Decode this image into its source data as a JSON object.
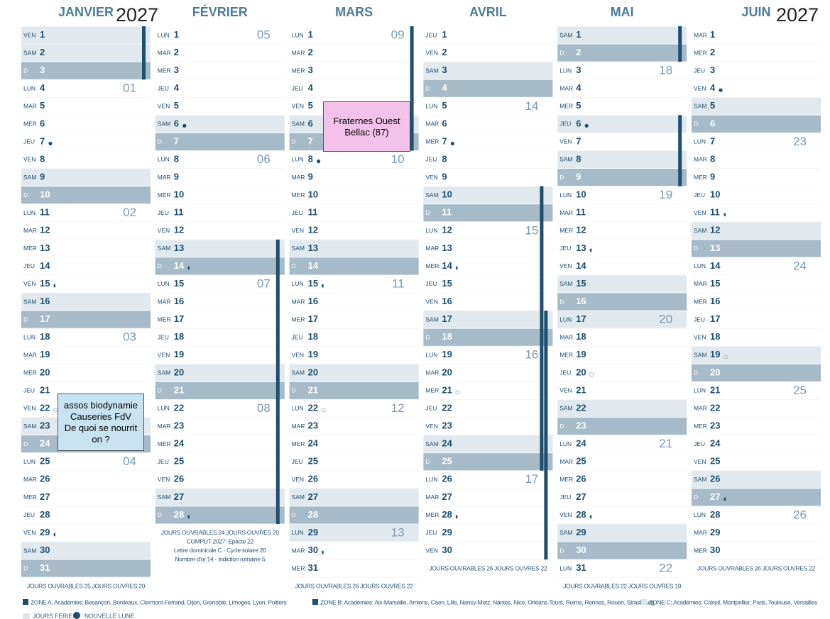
{
  "calendar": {
    "year_left": "2027",
    "year_right": "2027",
    "months": [
      {
        "name": "JANVIER",
        "days": [
          [
            "VEN",
            1
          ],
          [
            "SAM",
            2
          ],
          [
            "D",
            3
          ],
          [
            "LUN",
            4,
            "01"
          ],
          [
            "MAR",
            5
          ],
          [
            "MER",
            6
          ],
          [
            "JEU",
            7
          ],
          [
            "VEN",
            8
          ],
          [
            "SAM",
            9
          ],
          [
            "D",
            10
          ],
          [
            "LUN",
            11,
            "02"
          ],
          [
            "MAR",
            12
          ],
          [
            "MER",
            13
          ],
          [
            "JEU",
            14
          ],
          [
            "VEN",
            15
          ],
          [
            "SAM",
            16
          ],
          [
            "D",
            17
          ],
          [
            "LUN",
            18,
            "03"
          ],
          [
            "MAR",
            19
          ],
          [
            "MER",
            20
          ],
          [
            "JEU",
            21
          ],
          [
            "VEN",
            22
          ],
          [
            "SAM",
            23
          ],
          [
            "D",
            24
          ],
          [
            "LUN",
            25,
            "04"
          ],
          [
            "MAR",
            26
          ],
          [
            "MER",
            27
          ],
          [
            "JEU",
            28
          ],
          [
            "VEN",
            29
          ],
          [
            "SAM",
            30
          ],
          [
            "D",
            31
          ]
        ],
        "holidays": [
          1
        ],
        "moons": [
          [
            7,
            "new"
          ],
          [
            15,
            "quarter"
          ],
          [
            22,
            "full"
          ],
          [
            29,
            "quarter"
          ]
        ],
        "vacations": [
          [
            1,
            3,
            "A"
          ]
        ],
        "footer": [
          "JOURS OUVRABLES 25 JOURS OUVRES 20"
        ]
      },
      {
        "name": "FÉVRIER",
        "days": [
          [
            "LUN",
            1,
            "05"
          ],
          [
            "MAR",
            2
          ],
          [
            "MER",
            3
          ],
          [
            "JEU",
            4
          ],
          [
            "VEN",
            5
          ],
          [
            "SAM",
            6
          ],
          [
            "D",
            7
          ],
          [
            "LUN",
            8,
            "06"
          ],
          [
            "MAR",
            9
          ],
          [
            "MER",
            10
          ],
          [
            "JEU",
            11
          ],
          [
            "VEN",
            12
          ],
          [
            "SAM",
            13
          ],
          [
            "D",
            14
          ],
          [
            "LUN",
            15,
            "07"
          ],
          [
            "MAR",
            16
          ],
          [
            "MER",
            17
          ],
          [
            "JEU",
            18
          ],
          [
            "VEN",
            19
          ],
          [
            "SAM",
            20
          ],
          [
            "D",
            21
          ],
          [
            "LUN",
            22,
            "08"
          ],
          [
            "MAR",
            23
          ],
          [
            "MER",
            24
          ],
          [
            "JEU",
            25
          ],
          [
            "VEN",
            26
          ],
          [
            "SAM",
            27
          ],
          [
            "D",
            28
          ]
        ],
        "holidays": [],
        "moons": [
          [
            6,
            "new"
          ],
          [
            14,
            "quarter"
          ],
          [
            21,
            "full"
          ],
          [
            28,
            "quarter"
          ]
        ],
        "vacations": [
          [
            13,
            28,
            "A"
          ]
        ],
        "footer": [
          "JOURS OUVRABLES 24 JOURS OUVRES 20",
          "COMPUT 2027: Epacte 22",
          "Lettre dominicale C - Cycle solaire 20",
          "Nombre d'or 14 - Indiction romaine 5"
        ]
      },
      {
        "name": "MARS",
        "days": [
          [
            "LUN",
            1,
            "09"
          ],
          [
            "MAR",
            2
          ],
          [
            "MER",
            3
          ],
          [
            "JEU",
            4
          ],
          [
            "VEN",
            5
          ],
          [
            "SAM",
            6
          ],
          [
            "D",
            7
          ],
          [
            "LUN",
            8,
            "10"
          ],
          [
            "MAR",
            9
          ],
          [
            "MER",
            10
          ],
          [
            "JEU",
            11
          ],
          [
            "VEN",
            12
          ],
          [
            "SAM",
            13
          ],
          [
            "D",
            14
          ],
          [
            "LUN",
            15,
            "11"
          ],
          [
            "MAR",
            16
          ],
          [
            "MER",
            17
          ],
          [
            "JEU",
            18
          ],
          [
            "VEN",
            19
          ],
          [
            "SAM",
            20
          ],
          [
            "D",
            21
          ],
          [
            "LUN",
            22,
            "12"
          ],
          [
            "MAR",
            23
          ],
          [
            "MER",
            24
          ],
          [
            "JEU",
            25
          ],
          [
            "VEN",
            26
          ],
          [
            "SAM",
            27
          ],
          [
            "D",
            28
          ],
          [
            "LUN",
            29,
            "13"
          ],
          [
            "MAR",
            30
          ],
          [
            "MER",
            31
          ]
        ],
        "holidays": [
          29
        ],
        "moons": [
          [
            8,
            "new"
          ],
          [
            15,
            "quarter"
          ],
          [
            22,
            "full"
          ],
          [
            30,
            "quarter"
          ]
        ],
        "vacations": [
          [
            1,
            7,
            "A"
          ]
        ],
        "footer": [
          "JOURS OUVRABLES 26 JOURS OUVRES 22"
        ]
      },
      {
        "name": "AVRIL",
        "days": [
          [
            "JEU",
            1
          ],
          [
            "VEN",
            2
          ],
          [
            "SAM",
            3
          ],
          [
            "D",
            4
          ],
          [
            "LUN",
            5,
            "14"
          ],
          [
            "MAR",
            6
          ],
          [
            "MER",
            7
          ],
          [
            "JEU",
            8
          ],
          [
            "VEN",
            9
          ],
          [
            "SAM",
            10
          ],
          [
            "D",
            11
          ],
          [
            "LUN",
            12,
            "15"
          ],
          [
            "MAR",
            13
          ],
          [
            "MER",
            14
          ],
          [
            "JEU",
            15
          ],
          [
            "VEN",
            16
          ],
          [
            "SAM",
            17
          ],
          [
            "D",
            18
          ],
          [
            "LUN",
            19,
            "16"
          ],
          [
            "MAR",
            20
          ],
          [
            "MER",
            21
          ],
          [
            "JEU",
            22
          ],
          [
            "VEN",
            23
          ],
          [
            "SAM",
            24
          ],
          [
            "D",
            25
          ],
          [
            "LUN",
            26,
            "17"
          ],
          [
            "MAR",
            27
          ],
          [
            "MER",
            28
          ],
          [
            "JEU",
            29
          ],
          [
            "VEN",
            30
          ]
        ],
        "holidays": [],
        "moons": [
          [
            7,
            "new"
          ],
          [
            14,
            "quarter"
          ],
          [
            21,
            "full"
          ],
          [
            28,
            "quarter"
          ]
        ],
        "vacations": [
          [
            10,
            25,
            "B"
          ],
          [
            17,
            30,
            "C"
          ]
        ],
        "footer": [
          "JOURS OUVRABLES 26 JOURS OUVRES 22"
        ]
      },
      {
        "name": "MAI",
        "days": [
          [
            "SAM",
            1
          ],
          [
            "D",
            2
          ],
          [
            "LUN",
            3,
            "18"
          ],
          [
            "MAR",
            4
          ],
          [
            "MER",
            5
          ],
          [
            "JEU",
            6
          ],
          [
            "VEN",
            7
          ],
          [
            "SAM",
            8
          ],
          [
            "D",
            9
          ],
          [
            "LUN",
            10,
            "19"
          ],
          [
            "MAR",
            11
          ],
          [
            "MER",
            12
          ],
          [
            "JEU",
            13
          ],
          [
            "VEN",
            14
          ],
          [
            "SAM",
            15
          ],
          [
            "D",
            16
          ],
          [
            "LUN",
            17,
            "20"
          ],
          [
            "MAR",
            18
          ],
          [
            "MER",
            19
          ],
          [
            "JEU",
            20
          ],
          [
            "VEN",
            21
          ],
          [
            "SAM",
            22
          ],
          [
            "D",
            23
          ],
          [
            "LUN",
            24,
            "21"
          ],
          [
            "MAR",
            25
          ],
          [
            "MER",
            26
          ],
          [
            "JEU",
            27
          ],
          [
            "VEN",
            28
          ],
          [
            "SAM",
            29
          ],
          [
            "D",
            30
          ],
          [
            "LUN",
            31,
            "22"
          ]
        ],
        "holidays": [
          1,
          6,
          8,
          17
        ],
        "moons": [
          [
            6,
            "new"
          ],
          [
            13,
            "quarter"
          ],
          [
            20,
            "full"
          ],
          [
            28,
            "quarter"
          ]
        ],
        "vacations": [
          [
            1,
            2,
            "C"
          ],
          [
            6,
            9,
            "A"
          ]
        ],
        "footer": [
          "JOURS OUVRABLES 22 JOURS OUVRES 19"
        ]
      },
      {
        "name": "JUIN",
        "days": [
          [
            "MAR",
            1
          ],
          [
            "MER",
            2
          ],
          [
            "JEU",
            3
          ],
          [
            "VEN",
            4
          ],
          [
            "SAM",
            5
          ],
          [
            "D",
            6
          ],
          [
            "LUN",
            7,
            "23"
          ],
          [
            "MAR",
            8
          ],
          [
            "MER",
            9
          ],
          [
            "JEU",
            10
          ],
          [
            "VEN",
            11
          ],
          [
            "SAM",
            12
          ],
          [
            "D",
            13
          ],
          [
            "LUN",
            14,
            "24"
          ],
          [
            "MAR",
            15
          ],
          [
            "MER",
            16
          ],
          [
            "JEU",
            17
          ],
          [
            "VEN",
            18
          ],
          [
            "SAM",
            19
          ],
          [
            "D",
            20
          ],
          [
            "LUN",
            21,
            "25"
          ],
          [
            "MAR",
            22
          ],
          [
            "MER",
            23
          ],
          [
            "JEU",
            24
          ],
          [
            "VEN",
            25
          ],
          [
            "SAM",
            26
          ],
          [
            "D",
            27
          ],
          [
            "LUN",
            28,
            "26"
          ],
          [
            "MAR",
            29
          ],
          [
            "MER",
            30
          ]
        ],
        "holidays": [],
        "moons": [
          [
            4,
            "new"
          ],
          [
            11,
            "quarter"
          ],
          [
            19,
            "full"
          ],
          [
            27,
            "quarter"
          ]
        ],
        "vacations": [],
        "footer": [
          "JOURS OUVRABLES 26 JOURS OUVRES 22"
        ]
      }
    ],
    "legend": {
      "zone_a": "ZONE A: Académies: Besançon, Bordeaux, Clermont-Ferrand, Dijon, Grenoble, Limoges, Lyon, Poitiers",
      "zone_b": "ZONE B: Académies: Aix-Marseille, Amiens, Caen, Lille, Nancy-Metz, Nantes, Nice, Orléans-Tours, Reims, Rennes, Rouen, Strasbourg",
      "zone_c": "ZONE C: Académies: Créteil, Montpellier, Paris, Toulouse, Versailles",
      "holidays": "JOURS FERIES",
      "new_moon": "NOUVELLE LUNE"
    },
    "notes": [
      {
        "lines": [
          "Fraternes Ouest",
          "Bellac (87)"
        ]
      },
      {
        "lines": [
          "assos biodynamie",
          "Causeries  FdV",
          "De quoi se nourrit",
          "on ?"
        ]
      }
    ]
  }
}
